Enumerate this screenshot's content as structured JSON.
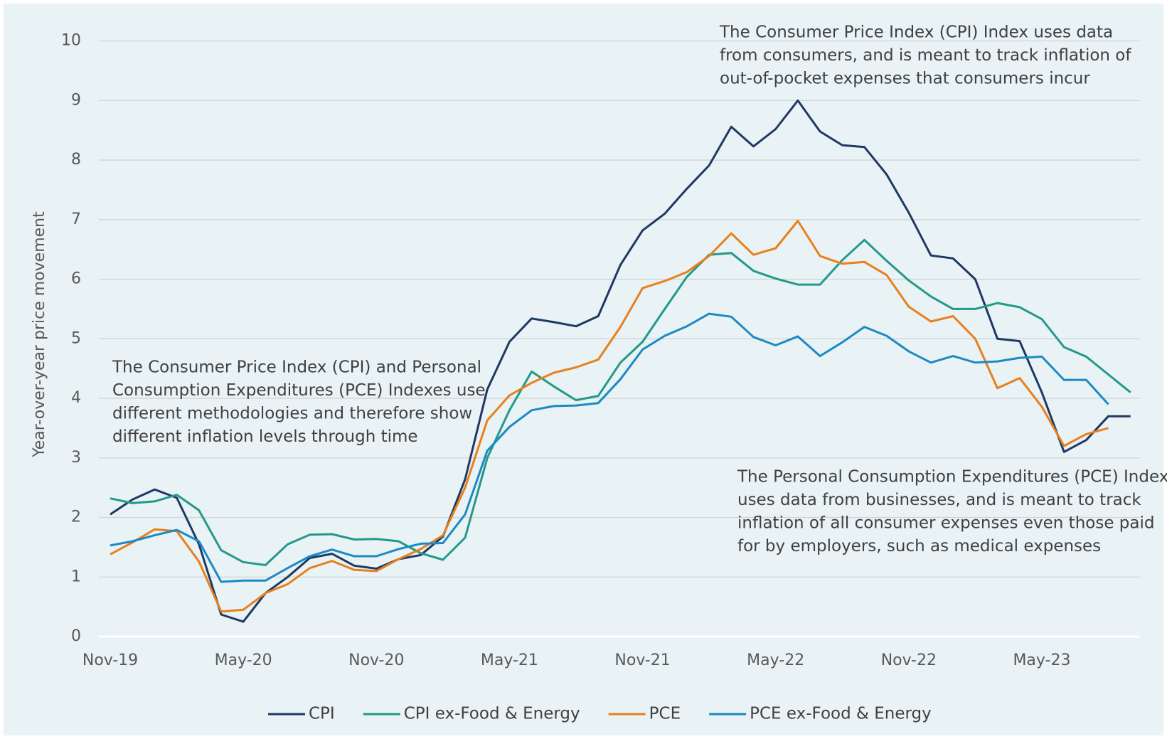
{
  "chart_data": {
    "type": "line",
    "y_axis_label": "Year-over-year price movement",
    "categories": [
      "Nov-19",
      null,
      null,
      null,
      null,
      null,
      "May-20",
      null,
      null,
      null,
      null,
      null,
      "Nov-20",
      null,
      null,
      null,
      null,
      null,
      "May-21",
      null,
      null,
      null,
      null,
      null,
      "Nov-21",
      null,
      null,
      null,
      null,
      null,
      "May-22",
      null,
      null,
      null,
      null,
      null,
      "Nov-22",
      null,
      null,
      null,
      null,
      null,
      "May-23",
      null,
      null,
      null,
      null
    ],
    "series": [
      {
        "name": "CPI",
        "color": "#1f3864",
        "values": [
          2.05,
          2.3,
          2.47,
          2.33,
          1.55,
          0.37,
          0.25,
          0.73,
          1.0,
          1.32,
          1.39,
          1.19,
          1.14,
          1.3,
          1.37,
          1.68,
          2.64,
          4.15,
          4.95,
          5.34,
          5.28,
          5.21,
          5.38,
          6.24,
          6.82,
          7.1,
          7.52,
          7.91,
          8.56,
          8.23,
          8.52,
          9.0,
          8.48,
          8.25,
          8.22,
          7.76,
          7.12,
          6.4,
          6.35,
          6.0,
          5.0,
          4.96,
          4.1,
          3.1,
          3.3,
          3.7,
          3.7
        ]
      },
      {
        "name": "CPI ex-Food & Energy",
        "color": "#23998a",
        "values": [
          2.32,
          2.24,
          2.27,
          2.38,
          2.12,
          1.45,
          1.25,
          1.2,
          1.55,
          1.71,
          1.72,
          1.63,
          1.64,
          1.6,
          1.4,
          1.29,
          1.66,
          3.0,
          3.8,
          4.45,
          4.2,
          3.97,
          4.04,
          4.6,
          4.95,
          5.5,
          6.04,
          6.41,
          6.44,
          6.14,
          6.01,
          5.91,
          5.91,
          6.32,
          6.66,
          6.31,
          5.98,
          5.71,
          5.5,
          5.5,
          5.6,
          5.53,
          5.33,
          4.86,
          4.7,
          4.4,
          4.1
        ]
      },
      {
        "name": "PCE",
        "color": "#e8801c",
        "values": [
          1.38,
          1.58,
          1.8,
          1.77,
          1.26,
          0.42,
          0.45,
          0.73,
          0.88,
          1.15,
          1.27,
          1.12,
          1.1,
          1.3,
          1.47,
          1.7,
          2.5,
          3.63,
          4.05,
          4.26,
          4.43,
          4.52,
          4.65,
          5.2,
          5.85,
          5.97,
          6.12,
          6.39,
          6.77,
          6.41,
          6.52,
          6.98,
          6.39,
          6.26,
          6.29,
          6.07,
          5.54,
          5.29,
          5.38,
          5.0,
          4.17,
          4.34,
          3.86,
          3.2,
          3.4,
          3.5,
          null
        ]
      },
      {
        "name": "PCE ex-Food & Energy",
        "color": "#1b8ac4",
        "values": [
          1.53,
          1.6,
          1.7,
          1.79,
          1.6,
          0.92,
          0.94,
          0.94,
          1.15,
          1.35,
          1.46,
          1.35,
          1.35,
          1.47,
          1.56,
          1.57,
          2.05,
          3.12,
          3.52,
          3.8,
          3.87,
          3.88,
          3.92,
          4.32,
          4.82,
          5.05,
          5.21,
          5.42,
          5.37,
          5.03,
          4.89,
          5.04,
          4.71,
          4.94,
          5.2,
          5.05,
          4.79,
          4.6,
          4.71,
          4.6,
          4.62,
          4.68,
          4.7,
          4.31,
          4.31,
          3.9,
          null
        ]
      }
    ],
    "ylim": [
      0,
      10
    ],
    "yticks": [
      0,
      1,
      2,
      3,
      4,
      5,
      6,
      7,
      8,
      9,
      10
    ],
    "grid": true,
    "annotations": [
      [
        "The Consumer Price Index (CPI) Index uses data",
        "from consumers, and is meant to track inflation of",
        "out-of-pocket expenses that consumers incur"
      ],
      [
        "The Consumer Price Index (CPI) and Personal",
        "Consumption Expenditures (PCE) Indexes use",
        "different methodologies and therefore show",
        "different inflation levels through time"
      ],
      [
        "The Personal Consumption Expenditures (PCE) Index",
        "uses data from businesses, and is meant to track",
        "inflation of all consumer expenses even those paid",
        "for by employers, such as medical expenses"
      ]
    ],
    "legend": "bottom"
  }
}
